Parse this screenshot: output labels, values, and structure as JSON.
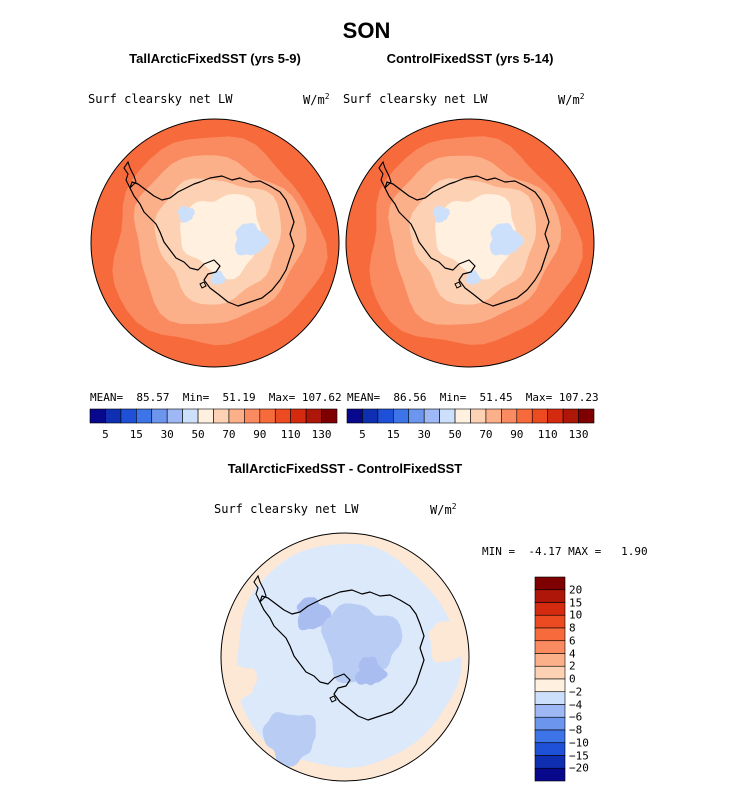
{
  "title": "SON",
  "chart_data": [
    {
      "type": "heatmap",
      "title": "TallArcticFixedSST (yrs 5-9)",
      "variable": "Surf clearsky net LW",
      "unit_base": "W/m",
      "unit_exp": "2",
      "projection": "south polar stereographic",
      "stats": {
        "mean": "85.57",
        "min": "51.19",
        "max": "107.62"
      },
      "stats_text": "MEAN=  85.57  Min=  51.19  Max= 107.62",
      "colorbar": {
        "orientation": "horizontal",
        "tick_labels": [
          "5",
          "15",
          "30",
          "50",
          "70",
          "90",
          "110",
          "130"
        ],
        "colors": [
          "#08088c",
          "#0f2fb3",
          "#1e50d8",
          "#3d74e8",
          "#6c95ee",
          "#9db8f4",
          "#cde0fb",
          "#fff0e0",
          "#fdd2b4",
          "#fcb08a",
          "#fa8a5f",
          "#f66a3c",
          "#ec4a20",
          "#d42a10",
          "#ad1608",
          "#7e0000"
        ]
      },
      "field_levels": [
        "#cde0fb",
        "#fff0e0",
        "#fdd2b4",
        "#fcb08a",
        "#fa8a5f",
        "#f66a3c"
      ]
    },
    {
      "type": "heatmap",
      "title": "ControlFixedSST (yrs 5-14)",
      "variable": "Surf clearsky net LW",
      "unit_base": "W/m",
      "unit_exp": "2",
      "projection": "south polar stereographic",
      "stats": {
        "mean": "86.56",
        "min": "51.45",
        "max": "107.23"
      },
      "stats_text": "MEAN=  86.56  Min=  51.45  Max= 107.23",
      "colorbar": {
        "orientation": "horizontal",
        "tick_labels": [
          "5",
          "15",
          "30",
          "50",
          "70",
          "90",
          "110",
          "130"
        ],
        "colors": [
          "#08088c",
          "#0f2fb3",
          "#1e50d8",
          "#3d74e8",
          "#6c95ee",
          "#9db8f4",
          "#cde0fb",
          "#fff0e0",
          "#fdd2b4",
          "#fcb08a",
          "#fa8a5f",
          "#f66a3c",
          "#ec4a20",
          "#d42a10",
          "#ad1608",
          "#7e0000"
        ]
      },
      "field_levels": [
        "#cde0fb",
        "#fff0e0",
        "#fdd2b4",
        "#fcb08a",
        "#fa8a5f",
        "#f66a3c"
      ]
    },
    {
      "type": "heatmap",
      "title": "TallArcticFixedSST - ControlFixedSST",
      "variable": "Surf clearsky net LW",
      "unit_base": "W/m",
      "unit_exp": "2",
      "projection": "south polar stereographic",
      "stats": {
        "min": "-4.17",
        "max": "1.90"
      },
      "stats_text": "MIN =  -4.17 MAX =   1.90",
      "colorbar": {
        "orientation": "vertical",
        "tick_labels": [
          "20",
          "15",
          "10",
          "8",
          "6",
          "4",
          "2",
          "0",
          "−2",
          "−4",
          "−6",
          "−8",
          "−10",
          "−15",
          "−20"
        ],
        "colors": [
          "#7e0000",
          "#ad1608",
          "#d42a10",
          "#ec4a20",
          "#f66a3c",
          "#fa8a5f",
          "#fcb08a",
          "#fdd2b4",
          "#fff0e0",
          "#cde0fb",
          "#9db8f4",
          "#6c95ee",
          "#3d74e8",
          "#1e50d8",
          "#0f2fb3",
          "#08088c"
        ]
      },
      "field_levels": [
        "#fde8d6",
        "#dce9fb",
        "#b8ccf4",
        "#a9bdf0"
      ]
    }
  ]
}
